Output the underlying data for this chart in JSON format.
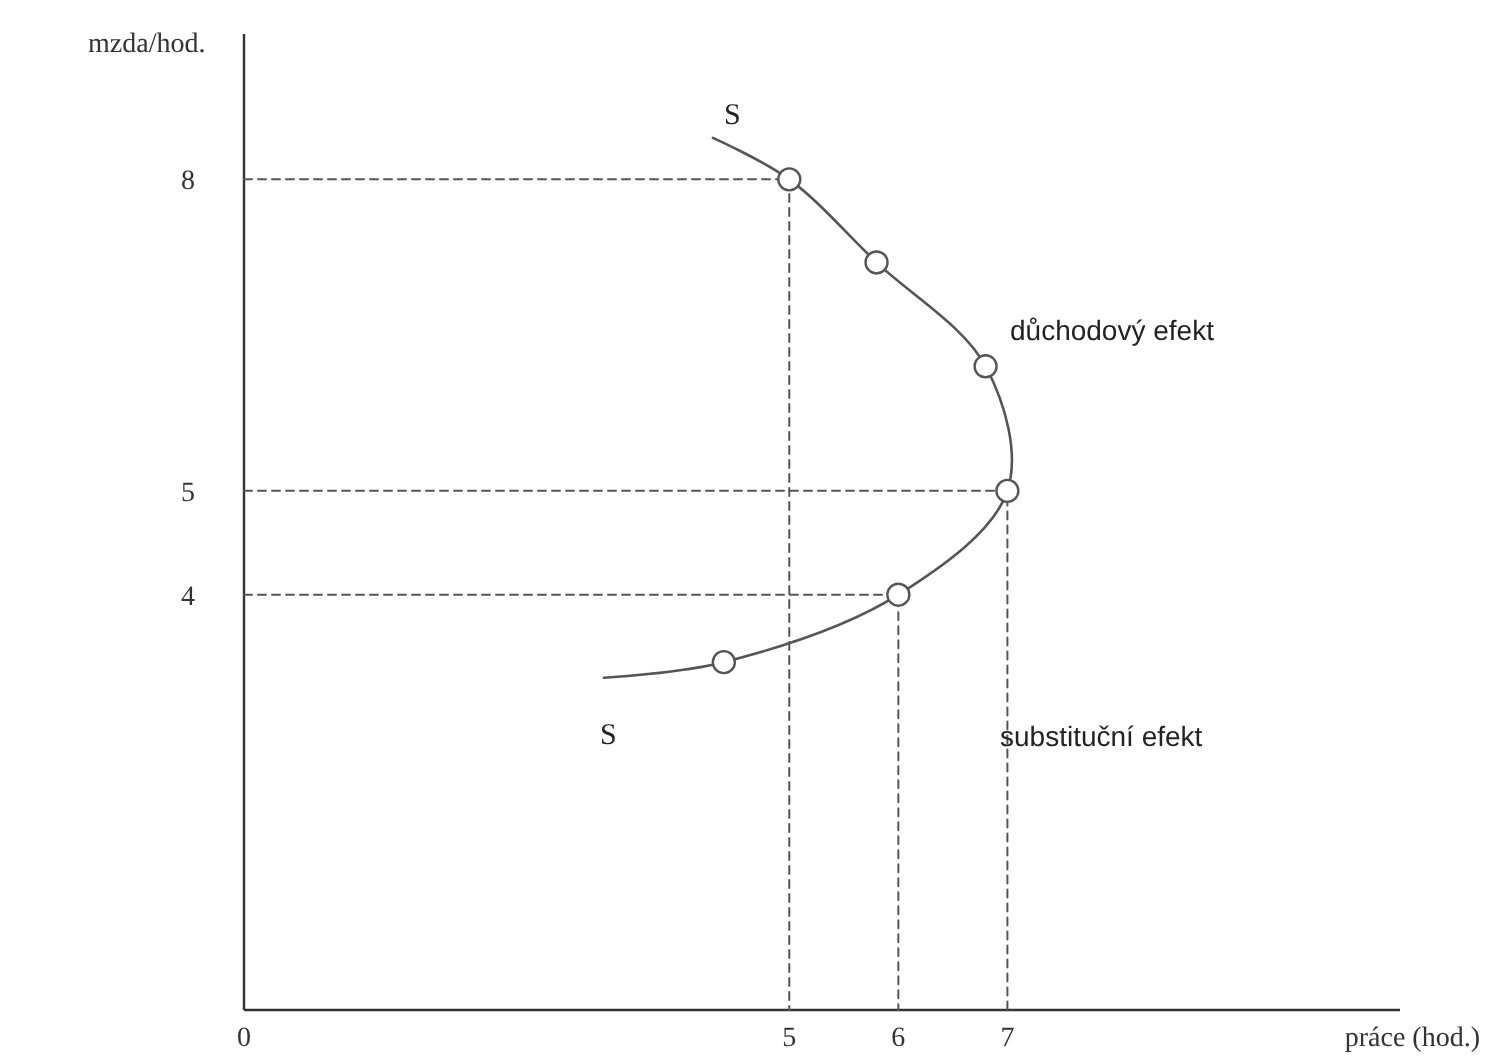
{
  "chart_data": {
    "type": "line",
    "xlabel": "práce (hod.)",
    "ylabel": "mzda/hod.",
    "xlim": [
      0,
      10.6
    ],
    "ylim": [
      0,
      9.4
    ],
    "xticks": [
      0,
      5,
      6,
      7
    ],
    "yticks": [
      4,
      5,
      8
    ],
    "grid": false,
    "series": [
      {
        "color": "#555555",
        "line_style": "dashed",
        "marker": "none",
        "x": [
          0,
          5,
          5
        ],
        "values": [
          8,
          8,
          0
        ]
      },
      {
        "color": "#555555",
        "line_style": "dashed",
        "marker": "none",
        "x": [
          0,
          7,
          7
        ],
        "values": [
          5,
          5,
          0
        ]
      },
      {
        "color": "#555555",
        "line_style": "dashed",
        "marker": "none",
        "x": [
          0,
          6,
          6
        ],
        "values": [
          4,
          4,
          0
        ]
      },
      {
        "color": "#555555",
        "line_style": "solid",
        "marker": "none",
        "x": [
          3.3,
          4.4,
          6,
          7,
          6.8,
          5.8,
          5,
          4.3
        ],
        "values": [
          3.2,
          3.35,
          4,
          5,
          6.2,
          7.2,
          8,
          8.4
        ]
      },
      {
        "type": "scatter",
        "color": "#555555",
        "marker": "circle",
        "x": [
          4.4,
          6,
          7,
          6.8,
          5.8,
          5
        ],
        "values": [
          3.35,
          4,
          5,
          6.2,
          7.2,
          8
        ]
      }
    ],
    "annotations": [
      "S",
      "S",
      "důchodový efekt",
      "substituční efekt"
    ]
  }
}
